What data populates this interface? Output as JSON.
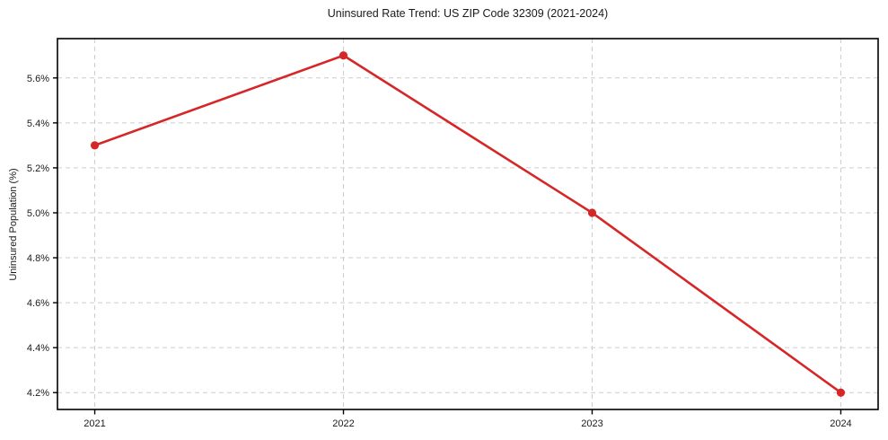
{
  "figure": {
    "background_color": "#ffffff"
  },
  "chart_data": {
    "type": "line",
    "title": "Uninsured Rate Trend: US ZIP Code 32309 (2021-2024)",
    "xlabel": "",
    "ylabel": "Uninsured Population (%)",
    "x": [
      2021,
      2022,
      2023,
      2024
    ],
    "x_tick_labels": [
      "2021",
      "2022",
      "2023",
      "2024"
    ],
    "series": [
      {
        "name": "Uninsured Rate",
        "values": [
          5.3,
          5.7,
          5.0,
          4.2
        ],
        "color": "#d62728",
        "marker": "circle"
      }
    ],
    "y_ticks": [
      {
        "value": 4.2,
        "label": "4.2%"
      },
      {
        "value": 4.4,
        "label": "4.4%"
      },
      {
        "value": 4.6,
        "label": "4.6%"
      },
      {
        "value": 4.8,
        "label": "4.8%"
      },
      {
        "value": 5.0,
        "label": "5.0%"
      },
      {
        "value": 5.2,
        "label": "5.2%"
      },
      {
        "value": 5.4,
        "label": "5.4%"
      },
      {
        "value": 5.6,
        "label": "5.6%"
      }
    ],
    "xlim": [
      2020.85,
      2024.15
    ],
    "ylim": [
      4.125,
      5.775
    ],
    "grid": true,
    "grid_style": "dashed",
    "grid_color": "#cccccc",
    "spine_color": "#000000",
    "legend": "none"
  }
}
